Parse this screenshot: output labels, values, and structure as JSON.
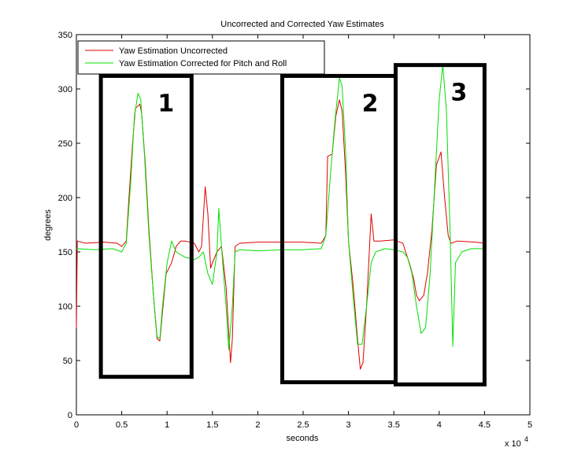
{
  "chart_data": {
    "type": "line",
    "title": "Uncorrected and Corrected Yaw Estimates",
    "xlabel": "seconds",
    "ylabel": "degrees",
    "x_exponent_label": "x 10",
    "x_exponent_power": "4",
    "xlim": [
      0,
      5
    ],
    "ylim": [
      0,
      350
    ],
    "xticks": [
      "0",
      "0.5",
      "1",
      "1.5",
      "2",
      "2.5",
      "3",
      "3.5",
      "4",
      "4.5",
      "5"
    ],
    "yticks": [
      "0",
      "50",
      "100",
      "150",
      "200",
      "250",
      "300",
      "350"
    ],
    "grid": false,
    "legend_position": "top-left",
    "series": [
      {
        "name": "Yaw Estimation Uncorrected",
        "color": "#e00000",
        "points": [
          [
            0,
            80
          ],
          [
            0.01,
            160
          ],
          [
            0.1,
            158
          ],
          [
            0.3,
            159
          ],
          [
            0.45,
            158
          ],
          [
            0.5,
            155
          ],
          [
            0.55,
            160
          ],
          [
            0.58,
            200
          ],
          [
            0.62,
            250
          ],
          [
            0.65,
            282
          ],
          [
            0.7,
            286
          ],
          [
            0.72,
            278
          ],
          [
            0.76,
            230
          ],
          [
            0.8,
            170
          ],
          [
            0.85,
            110
          ],
          [
            0.89,
            70
          ],
          [
            0.92,
            68
          ],
          [
            0.95,
            95
          ],
          [
            0.99,
            130
          ],
          [
            1.05,
            140
          ],
          [
            1.1,
            155
          ],
          [
            1.15,
            160
          ],
          [
            1.2,
            160
          ],
          [
            1.3,
            158
          ],
          [
            1.35,
            150
          ],
          [
            1.38,
            155
          ],
          [
            1.42,
            210
          ],
          [
            1.45,
            185
          ],
          [
            1.48,
            135
          ],
          [
            1.5,
            140
          ],
          [
            1.55,
            150
          ],
          [
            1.6,
            155
          ],
          [
            1.65,
            118
          ],
          [
            1.7,
            48
          ],
          [
            1.72,
            70
          ],
          [
            1.75,
            155
          ],
          [
            1.8,
            158
          ],
          [
            2.0,
            159
          ],
          [
            2.3,
            159
          ],
          [
            2.5,
            159
          ],
          [
            2.7,
            158
          ],
          [
            2.75,
            165
          ],
          [
            2.77,
            238
          ],
          [
            2.82,
            240
          ],
          [
            2.86,
            275
          ],
          [
            2.9,
            290
          ],
          [
            2.93,
            280
          ],
          [
            2.97,
            220
          ],
          [
            3.0,
            160
          ],
          [
            3.05,
            120
          ],
          [
            3.1,
            70
          ],
          [
            3.13,
            42
          ],
          [
            3.16,
            48
          ],
          [
            3.2,
            100
          ],
          [
            3.25,
            185
          ],
          [
            3.28,
            160
          ],
          [
            3.35,
            160
          ],
          [
            3.5,
            161
          ],
          [
            3.6,
            158
          ],
          [
            3.63,
            150
          ],
          [
            3.67,
            140
          ],
          [
            3.72,
            125
          ],
          [
            3.75,
            110
          ],
          [
            3.78,
            105
          ],
          [
            3.83,
            110
          ],
          [
            3.87,
            130
          ],
          [
            3.92,
            170
          ],
          [
            3.97,
            230
          ],
          [
            4.02,
            242
          ],
          [
            4.06,
            200
          ],
          [
            4.1,
            165
          ],
          [
            4.13,
            158
          ],
          [
            4.2,
            160
          ],
          [
            4.4,
            159
          ],
          [
            4.5,
            158
          ]
        ]
      },
      {
        "name": "Yaw Estimation Corrected for Pitch and Roll",
        "color": "#00e000",
        "points": [
          [
            0,
            153
          ],
          [
            0.2,
            152
          ],
          [
            0.4,
            153
          ],
          [
            0.5,
            150
          ],
          [
            0.55,
            158
          ],
          [
            0.6,
            215
          ],
          [
            0.64,
            275
          ],
          [
            0.68,
            296
          ],
          [
            0.71,
            290
          ],
          [
            0.75,
            240
          ],
          [
            0.8,
            165
          ],
          [
            0.85,
            110
          ],
          [
            0.89,
            72
          ],
          [
            0.92,
            70
          ],
          [
            0.95,
            100
          ],
          [
            1.0,
            140
          ],
          [
            1.05,
            160
          ],
          [
            1.1,
            150
          ],
          [
            1.2,
            145
          ],
          [
            1.3,
            143
          ],
          [
            1.35,
            145
          ],
          [
            1.4,
            150
          ],
          [
            1.45,
            130
          ],
          [
            1.5,
            120
          ],
          [
            1.55,
            150
          ],
          [
            1.57,
            190
          ],
          [
            1.6,
            155
          ],
          [
            1.65,
            100
          ],
          [
            1.68,
            60
          ],
          [
            1.72,
            100
          ],
          [
            1.75,
            150
          ],
          [
            1.8,
            152
          ],
          [
            2.0,
            151
          ],
          [
            2.3,
            152
          ],
          [
            2.5,
            152
          ],
          [
            2.7,
            153
          ],
          [
            2.75,
            165
          ],
          [
            2.8,
            220
          ],
          [
            2.85,
            270
          ],
          [
            2.9,
            310
          ],
          [
            2.93,
            303
          ],
          [
            2.97,
            240
          ],
          [
            3.0,
            160
          ],
          [
            3.05,
            110
          ],
          [
            3.1,
            65
          ],
          [
            3.15,
            65
          ],
          [
            3.2,
            100
          ],
          [
            3.25,
            140
          ],
          [
            3.3,
            150
          ],
          [
            3.4,
            153
          ],
          [
            3.5,
            152
          ],
          [
            3.6,
            150
          ],
          [
            3.65,
            145
          ],
          [
            3.7,
            130
          ],
          [
            3.75,
            100
          ],
          [
            3.8,
            75
          ],
          [
            3.85,
            80
          ],
          [
            3.9,
            130
          ],
          [
            3.95,
            210
          ],
          [
            4.0,
            290
          ],
          [
            4.04,
            322
          ],
          [
            4.08,
            280
          ],
          [
            4.12,
            170
          ],
          [
            4.15,
            63
          ],
          [
            4.18,
            140
          ],
          [
            4.25,
            150
          ],
          [
            4.35,
            153
          ],
          [
            4.5,
            153
          ]
        ]
      }
    ],
    "annotations": [
      {
        "label": "1",
        "x0": 0.27,
        "x1": 1.27,
        "y0": 35,
        "y1": 312
      },
      {
        "label": "2",
        "x0": 2.27,
        "x1": 3.52,
        "y0": 30,
        "y1": 312
      },
      {
        "label": "3",
        "x0": 3.52,
        "x1": 4.5,
        "y0": 28,
        "y1": 322
      }
    ]
  }
}
